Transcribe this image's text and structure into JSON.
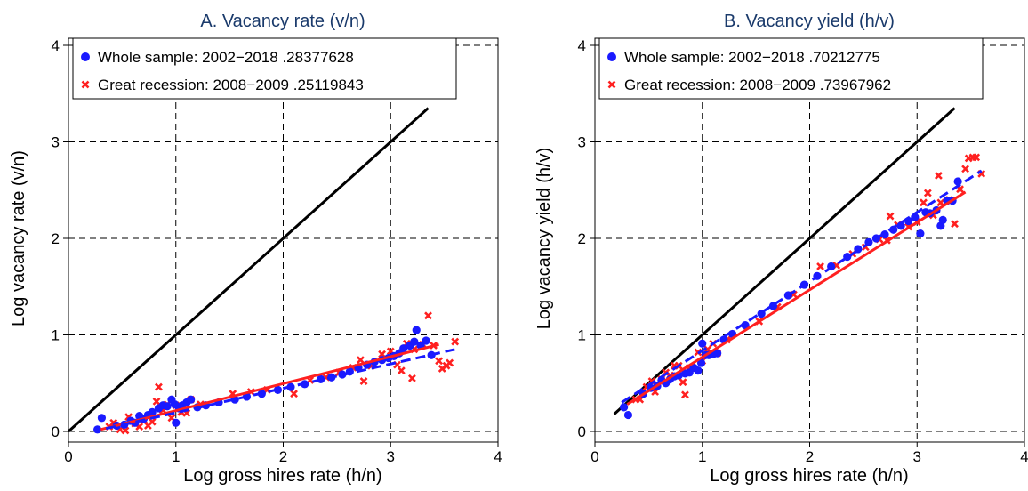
{
  "chart_data": [
    {
      "type": "scatter",
      "title": "A. Vacancy rate (v/n)",
      "xlabel": "Log gross hires rate (h/n)",
      "ylabel": "Log vacancy rate (v/n)",
      "xlim": [
        0,
        4
      ],
      "ylim": [
        0,
        4
      ],
      "xticks": [
        "0",
        "1",
        "2",
        "3",
        "4"
      ],
      "yticks": [
        "0",
        "1",
        "2",
        "3",
        "4"
      ],
      "grid": true,
      "legend_position": "top-left",
      "reference_line": {
        "x": [
          0,
          3.35
        ],
        "y": [
          0,
          3.35
        ],
        "color": "#000000"
      },
      "series": [
        {
          "name": "Whole sample: 2002−2018 .28377628",
          "marker": "circle",
          "color": "#1a1aff",
          "fit": {
            "x": [
              0.35,
              3.6
            ],
            "y": [
              0.03,
              0.85
            ],
            "style": "dashed"
          },
          "points": [
            [
              0.27,
              0.02
            ],
            [
              0.31,
              0.14
            ],
            [
              0.45,
              0.06
            ],
            [
              0.52,
              0.07
            ],
            [
              0.58,
              0.11
            ],
            [
              0.62,
              0.09
            ],
            [
              0.66,
              0.16
            ],
            [
              0.7,
              0.13
            ],
            [
              0.74,
              0.17
            ],
            [
              0.78,
              0.2
            ],
            [
              0.84,
              0.24
            ],
            [
              0.88,
              0.27
            ],
            [
              0.92,
              0.26
            ],
            [
              0.96,
              0.33
            ],
            [
              0.99,
              0.28
            ],
            [
              1.0,
              0.09
            ],
            [
              1.03,
              0.24
            ],
            [
              1.06,
              0.27
            ],
            [
              1.1,
              0.3
            ],
            [
              1.14,
              0.33
            ],
            [
              1.2,
              0.25
            ],
            [
              1.28,
              0.27
            ],
            [
              1.4,
              0.3
            ],
            [
              1.55,
              0.33
            ],
            [
              1.66,
              0.36
            ],
            [
              1.8,
              0.39
            ],
            [
              1.95,
              0.43
            ],
            [
              2.07,
              0.46
            ],
            [
              2.2,
              0.49
            ],
            [
              2.35,
              0.54
            ],
            [
              2.45,
              0.56
            ],
            [
              2.55,
              0.59
            ],
            [
              2.62,
              0.62
            ],
            [
              2.7,
              0.66
            ],
            [
              2.78,
              0.69
            ],
            [
              2.85,
              0.72
            ],
            [
              2.92,
              0.74
            ],
            [
              2.98,
              0.76
            ],
            [
              3.03,
              0.78
            ],
            [
              3.08,
              0.81
            ],
            [
              3.12,
              0.86
            ],
            [
              3.18,
              0.89
            ],
            [
              3.22,
              0.93
            ],
            [
              3.24,
              1.05
            ],
            [
              3.28,
              0.89
            ],
            [
              3.33,
              0.94
            ],
            [
              3.38,
              0.79
            ]
          ]
        },
        {
          "name": "Great recession: 2008−2009 .25119843",
          "marker": "x",
          "color": "#ff2020",
          "fit": {
            "x": [
              0.3,
              3.45
            ],
            "y": [
              0.02,
              0.9
            ],
            "style": "solid"
          },
          "points": [
            [
              0.38,
              0.05
            ],
            [
              0.42,
              0.09
            ],
            [
              0.48,
              0.02
            ],
            [
              0.53,
              0.01
            ],
            [
              0.56,
              0.15
            ],
            [
              0.62,
              0.08
            ],
            [
              0.66,
              0.05
            ],
            [
              0.7,
              0.12
            ],
            [
              0.74,
              0.06
            ],
            [
              0.78,
              0.1
            ],
            [
              0.82,
              0.31
            ],
            [
              0.84,
              0.46
            ],
            [
              0.88,
              0.22
            ],
            [
              0.92,
              0.28
            ],
            [
              0.96,
              0.14
            ],
            [
              1.0,
              0.27
            ],
            [
              1.05,
              0.2
            ],
            [
              1.1,
              0.19
            ],
            [
              1.14,
              0.33
            ],
            [
              1.23,
              0.28
            ],
            [
              1.53,
              0.39
            ],
            [
              1.7,
              0.41
            ],
            [
              1.85,
              0.43
            ],
            [
              2.1,
              0.39
            ],
            [
              2.25,
              0.53
            ],
            [
              2.4,
              0.56
            ],
            [
              2.52,
              0.61
            ],
            [
              2.65,
              0.66
            ],
            [
              2.72,
              0.74
            ],
            [
              2.75,
              0.52
            ],
            [
              2.82,
              0.68
            ],
            [
              2.92,
              0.8
            ],
            [
              3.0,
              0.83
            ],
            [
              3.06,
              0.69
            ],
            [
              3.1,
              0.63
            ],
            [
              3.15,
              0.91
            ],
            [
              3.2,
              0.55
            ],
            [
              3.22,
              0.85
            ],
            [
              3.3,
              0.9
            ],
            [
              3.35,
              1.2
            ],
            [
              3.4,
              0.89
            ],
            [
              3.45,
              0.73
            ],
            [
              3.48,
              0.65
            ],
            [
              3.52,
              0.68
            ],
            [
              3.55,
              0.71
            ],
            [
              3.6,
              0.93
            ]
          ]
        }
      ]
    },
    {
      "type": "scatter",
      "title": "B. Vacancy yield (h/v)",
      "xlabel": "Log gross hires rate (h/n)",
      "ylabel": "Log vacancy yield (h/v)",
      "xlim": [
        0,
        4
      ],
      "ylim": [
        0,
        4
      ],
      "xticks": [
        "0",
        "1",
        "2",
        "3",
        "4"
      ],
      "yticks": [
        "0",
        "1",
        "2",
        "3",
        "4"
      ],
      "grid": true,
      "legend_position": "top-left",
      "reference_line": {
        "x": [
          0.18,
          3.35
        ],
        "y": [
          0.18,
          3.35
        ],
        "color": "#000000"
      },
      "series": [
        {
          "name": "Whole sample: 2002−2018 .70212775",
          "marker": "circle",
          "color": "#1a1aff",
          "fit": {
            "x": [
              0.25,
              3.6
            ],
            "y": [
              0.3,
              2.7
            ],
            "style": "dashed"
          },
          "points": [
            [
              0.27,
              0.25
            ],
            [
              0.31,
              0.17
            ],
            [
              0.45,
              0.39
            ],
            [
              0.52,
              0.45
            ],
            [
              0.58,
              0.47
            ],
            [
              0.62,
              0.53
            ],
            [
              0.66,
              0.5
            ],
            [
              0.7,
              0.54
            ],
            [
              0.74,
              0.57
            ],
            [
              0.78,
              0.58
            ],
            [
              0.84,
              0.6
            ],
            [
              0.88,
              0.61
            ],
            [
              0.92,
              0.66
            ],
            [
              0.96,
              0.63
            ],
            [
              0.99,
              0.71
            ],
            [
              1.0,
              0.91
            ],
            [
              1.03,
              0.79
            ],
            [
              1.06,
              0.79
            ],
            [
              1.1,
              0.8
            ],
            [
              1.14,
              0.81
            ],
            [
              1.2,
              0.95
            ],
            [
              1.28,
              1.01
            ],
            [
              1.4,
              1.1
            ],
            [
              1.55,
              1.22
            ],
            [
              1.66,
              1.3
            ],
            [
              1.8,
              1.41
            ],
            [
              1.95,
              1.52
            ],
            [
              2.07,
              1.61
            ],
            [
              2.2,
              1.71
            ],
            [
              2.35,
              1.81
            ],
            [
              2.45,
              1.89
            ],
            [
              2.55,
              1.96
            ],
            [
              2.62,
              2.0
            ],
            [
              2.7,
              2.04
            ],
            [
              2.78,
              2.09
            ],
            [
              2.85,
              2.13
            ],
            [
              2.92,
              2.18
            ],
            [
              2.98,
              2.22
            ],
            [
              3.03,
              2.05
            ],
            [
              3.08,
              2.27
            ],
            [
              3.12,
              2.26
            ],
            [
              3.18,
              2.29
            ],
            [
              3.22,
              2.13
            ],
            [
              3.24,
              2.19
            ],
            [
              3.28,
              2.39
            ],
            [
              3.33,
              2.39
            ],
            [
              3.38,
              2.59
            ]
          ]
        },
        {
          "name": "Great recession: 2008−2009 .73967962",
          "marker": "x",
          "color": "#ff2020",
          "fit": {
            "x": [
              0.3,
              3.45
            ],
            "y": [
              0.28,
              2.48
            ],
            "style": "solid"
          },
          "points": [
            [
              0.38,
              0.33
            ],
            [
              0.42,
              0.33
            ],
            [
              0.48,
              0.46
            ],
            [
              0.53,
              0.52
            ],
            [
              0.56,
              0.41
            ],
            [
              0.62,
              0.54
            ],
            [
              0.66,
              0.61
            ],
            [
              0.7,
              0.58
            ],
            [
              0.74,
              0.68
            ],
            [
              0.78,
              0.68
            ],
            [
              0.82,
              0.51
            ],
            [
              0.84,
              0.38
            ],
            [
              0.88,
              0.66
            ],
            [
              0.92,
              0.64
            ],
            [
              0.96,
              0.82
            ],
            [
              1.0,
              0.73
            ],
            [
              1.05,
              0.85
            ],
            [
              1.1,
              0.91
            ],
            [
              1.14,
              0.81
            ],
            [
              1.23,
              0.95
            ],
            [
              1.53,
              1.14
            ],
            [
              1.7,
              1.29
            ],
            [
              1.85,
              1.42
            ],
            [
              2.1,
              1.71
            ],
            [
              2.25,
              1.72
            ],
            [
              2.4,
              1.84
            ],
            [
              2.52,
              1.91
            ],
            [
              2.65,
              1.99
            ],
            [
              2.72,
              1.98
            ],
            [
              2.75,
              2.23
            ],
            [
              2.82,
              2.14
            ],
            [
              2.92,
              2.12
            ],
            [
              3.0,
              2.17
            ],
            [
              3.06,
              2.37
            ],
            [
              3.1,
              2.47
            ],
            [
              3.15,
              2.24
            ],
            [
              3.2,
              2.65
            ],
            [
              3.22,
              2.37
            ],
            [
              3.3,
              2.4
            ],
            [
              3.35,
              2.15
            ],
            [
              3.4,
              2.51
            ],
            [
              3.45,
              2.72
            ],
            [
              3.48,
              2.83
            ],
            [
              3.52,
              2.84
            ],
            [
              3.55,
              2.84
            ],
            [
              3.6,
              2.67
            ]
          ]
        }
      ]
    }
  ]
}
